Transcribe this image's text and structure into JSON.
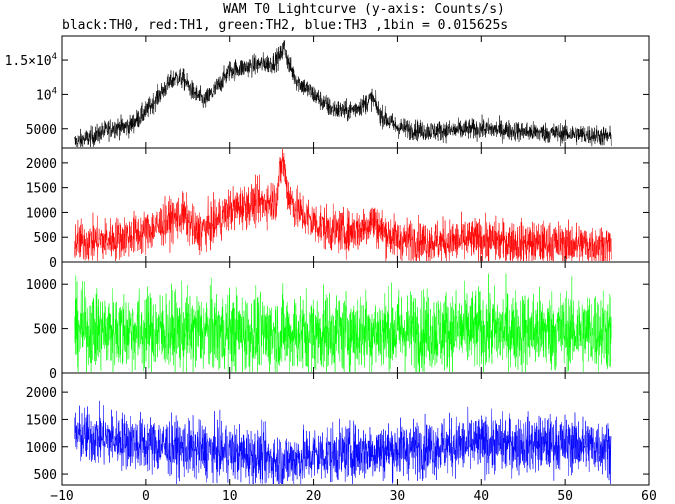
{
  "chart_data": {
    "type": "line",
    "title": "WAM T0 Lightcurve (y-axis: Counts/s)",
    "subtitle": "black:TH0, red:TH1, green:TH2, blue:TH3 ,1bin = 0.015625s",
    "xlim": [
      -10,
      60
    ],
    "x_ticks": [
      "−10",
      "0",
      "10",
      "20",
      "30",
      "40",
      "50",
      "60"
    ],
    "x_tick_values": [
      -10,
      0,
      10,
      20,
      30,
      40,
      50,
      60
    ],
    "panels": [
      {
        "series": "TH0",
        "color": "#000000",
        "ylim": [
          2200,
          18500
        ],
        "y_ticks": [
          {
            "value": 5000,
            "label": "5000"
          },
          {
            "value": 10000,
            "label": "10",
            "exp": "4"
          },
          {
            "value": 15000,
            "label": "1.5×10",
            "exp": "4"
          }
        ],
        "noise": 750,
        "points": [
          [
            -8.5,
            3000
          ],
          [
            -6,
            4000
          ],
          [
            -4,
            5200
          ],
          [
            -2,
            5300
          ],
          [
            0,
            7500
          ],
          [
            2,
            10500
          ],
          [
            3.5,
            12500
          ],
          [
            4.5,
            12200
          ],
          [
            5.5,
            10500
          ],
          [
            7,
            9000
          ],
          [
            8.5,
            11000
          ],
          [
            10,
            13500
          ],
          [
            12,
            14000
          ],
          [
            14,
            14500
          ],
          [
            15,
            14500
          ],
          [
            16,
            15500
          ],
          [
            16.5,
            17000
          ],
          [
            17,
            14500
          ],
          [
            18,
            12000
          ],
          [
            20,
            10000
          ],
          [
            22,
            8000
          ],
          [
            24,
            7500
          ],
          [
            26,
            8500
          ],
          [
            27,
            9500
          ],
          [
            28,
            7000
          ],
          [
            30,
            5200
          ],
          [
            33,
            4700
          ],
          [
            36,
            4700
          ],
          [
            40,
            5000
          ],
          [
            43,
            4800
          ],
          [
            46,
            4500
          ],
          [
            50,
            4300
          ],
          [
            53,
            4100
          ],
          [
            55.5,
            3800
          ]
        ]
      },
      {
        "series": "TH1",
        "color": "#ff0000",
        "ylim": [
          0,
          2300
        ],
        "y_ticks": [
          {
            "value": 0,
            "label": "0"
          },
          {
            "value": 500,
            "label": "500"
          },
          {
            "value": 1000,
            "label": "1000"
          },
          {
            "value": 1500,
            "label": "1500"
          },
          {
            "value": 2000,
            "label": "2000"
          }
        ],
        "noise": 220,
        "points": [
          [
            -8.5,
            400
          ],
          [
            -4,
            450
          ],
          [
            0,
            600
          ],
          [
            3,
            850
          ],
          [
            4.5,
            950
          ],
          [
            6,
            600
          ],
          [
            8,
            750
          ],
          [
            10,
            1050
          ],
          [
            12,
            1150
          ],
          [
            14,
            1200
          ],
          [
            15.5,
            1250
          ],
          [
            16.3,
            2100
          ],
          [
            17,
            1350
          ],
          [
            18,
            1050
          ],
          [
            20,
            800
          ],
          [
            22,
            650
          ],
          [
            24,
            600
          ],
          [
            26,
            700
          ],
          [
            27,
            850
          ],
          [
            28,
            650
          ],
          [
            30,
            450
          ],
          [
            35,
            400
          ],
          [
            40,
            450
          ],
          [
            45,
            380
          ],
          [
            50,
            360
          ],
          [
            55.5,
            330
          ]
        ]
      },
      {
        "series": "TH2",
        "color": "#00ff00",
        "ylim": [
          0,
          1250
        ],
        "y_ticks": [
          {
            "value": 0,
            "label": "0"
          },
          {
            "value": 500,
            "label": "500"
          },
          {
            "value": 1000,
            "label": "1000"
          }
        ],
        "noise": 230,
        "points": [
          [
            -8.5,
            480
          ],
          [
            0,
            470
          ],
          [
            10,
            460
          ],
          [
            16,
            440
          ],
          [
            20,
            450
          ],
          [
            30,
            470
          ],
          [
            40,
            480
          ],
          [
            50,
            470
          ],
          [
            55.5,
            470
          ]
        ]
      },
      {
        "series": "TH3",
        "color": "#0000ff",
        "ylim": [
          300,
          2350
        ],
        "y_ticks": [
          {
            "value": 500,
            "label": "500"
          },
          {
            "value": 1000,
            "label": "1000"
          },
          {
            "value": 1500,
            "label": "1500"
          },
          {
            "value": 2000,
            "label": "2000"
          }
        ],
        "noise": 260,
        "points": [
          [
            -8.5,
            1200
          ],
          [
            -4,
            1150
          ],
          [
            0,
            1050
          ],
          [
            5,
            950
          ],
          [
            10,
            900
          ],
          [
            14,
            800
          ],
          [
            16,
            720
          ],
          [
            18,
            780
          ],
          [
            20,
            850
          ],
          [
            25,
            900
          ],
          [
            30,
            950
          ],
          [
            35,
            1000
          ],
          [
            40,
            1050
          ],
          [
            45,
            1050
          ],
          [
            50,
            1050
          ],
          [
            55.5,
            1000
          ]
        ]
      }
    ],
    "grid": false,
    "legend": "subtitle"
  }
}
